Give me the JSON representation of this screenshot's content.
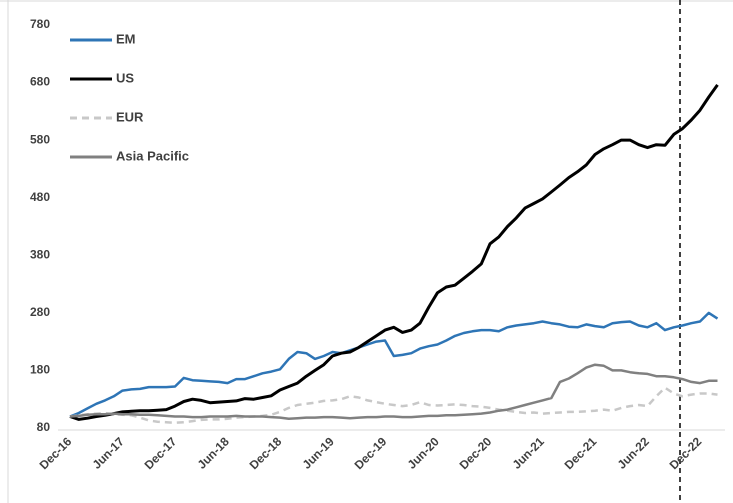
{
  "chart_data": {
    "type": "line",
    "categories": [
      "Dec-16",
      null,
      null,
      null,
      null,
      null,
      "Jun-17",
      null,
      null,
      null,
      null,
      null,
      "Dec-17",
      null,
      null,
      null,
      null,
      null,
      "Jun-18",
      null,
      null,
      null,
      null,
      null,
      "Dec-18",
      null,
      null,
      null,
      null,
      null,
      "Jun-19",
      null,
      null,
      null,
      null,
      null,
      "Dec-19",
      null,
      null,
      null,
      null,
      null,
      "Jun-20",
      null,
      null,
      null,
      null,
      null,
      "Dec-20",
      null,
      null,
      null,
      null,
      null,
      "Jun-21",
      null,
      null,
      null,
      null,
      null,
      "Dec-21",
      null,
      null,
      null,
      null,
      null,
      "Jun-22",
      null,
      null,
      null,
      null,
      null,
      "Dec-22",
      null,
      null
    ],
    "series": [
      {
        "name": "EM",
        "color": "#2e75b6",
        "dash": false,
        "values": [
          100,
          106,
          114,
          122,
          128,
          135,
          145,
          147,
          148,
          151,
          151,
          151,
          152,
          167,
          163,
          162,
          161,
          160,
          158,
          165,
          165,
          170,
          175,
          178,
          182,
          200,
          212,
          210,
          200,
          205,
          212,
          210,
          215,
          220,
          225,
          230,
          232,
          205,
          207,
          210,
          218,
          222,
          225,
          232,
          240,
          245,
          248,
          250,
          250,
          248,
          255,
          258,
          260,
          262,
          265,
          262,
          260,
          256,
          255,
          260,
          257,
          255,
          262,
          264,
          265,
          258,
          255,
          262,
          250,
          255,
          258,
          262,
          265,
          280,
          270
        ]
      },
      {
        "name": "US",
        "color": "#000000",
        "dash": false,
        "values": [
          100,
          95,
          97,
          100,
          102,
          105,
          108,
          109,
          110,
          110,
          111,
          112,
          118,
          126,
          130,
          128,
          124,
          125,
          126,
          127,
          131,
          130,
          133,
          136,
          146,
          152,
          158,
          170,
          180,
          190,
          205,
          210,
          212,
          220,
          230,
          240,
          250,
          255,
          246,
          250,
          262,
          290,
          315,
          325,
          328,
          340,
          352,
          365,
          400,
          412,
          430,
          445,
          462,
          470,
          478,
          490,
          502,
          515,
          525,
          537,
          555,
          565,
          572,
          580,
          580,
          572,
          567,
          572,
          571,
          590,
          600,
          615,
          632,
          655,
          676
        ]
      },
      {
        "name": "EUR",
        "color": "#c8c8c8",
        "dash": true,
        "values": [
          100,
          102,
          104,
          105,
          106,
          104,
          103,
          102,
          98,
          93,
          91,
          90,
          89,
          90,
          92,
          94,
          95,
          95,
          96,
          98,
          99,
          100,
          101,
          103,
          108,
          115,
          120,
          122,
          124,
          127,
          128,
          130,
          135,
          133,
          128,
          125,
          122,
          120,
          118,
          120,
          125,
          120,
          119,
          120,
          121,
          120,
          118,
          117,
          115,
          112,
          110,
          108,
          106,
          107,
          105,
          106,
          107,
          108,
          108,
          109,
          110,
          112,
          110,
          115,
          118,
          120,
          118,
          135,
          150,
          140,
          135,
          138,
          140,
          140,
          138
        ]
      },
      {
        "name": "Asia Pacific",
        "color": "#808080",
        "dash": false,
        "values": [
          100,
          101,
          103,
          104,
          104,
          105,
          104,
          104,
          103,
          103,
          102,
          101,
          100,
          100,
          99,
          99,
          100,
          100,
          100,
          101,
          100,
          100,
          100,
          99,
          98,
          96,
          97,
          98,
          98,
          99,
          99,
          98,
          97,
          98,
          99,
          99,
          100,
          100,
          99,
          99,
          100,
          101,
          101,
          102,
          102,
          103,
          104,
          105,
          107,
          110,
          112,
          116,
          120,
          124,
          128,
          132,
          160,
          166,
          175,
          185,
          190,
          188,
          180,
          180,
          177,
          175,
          174,
          170,
          170,
          168,
          165,
          160,
          158,
          162,
          162
        ]
      }
    ],
    "ylim": [
      80,
      780
    ],
    "yticks": [
      80,
      180,
      280,
      380,
      480,
      580,
      680,
      780
    ],
    "grid": false,
    "legend": "top-left"
  }
}
